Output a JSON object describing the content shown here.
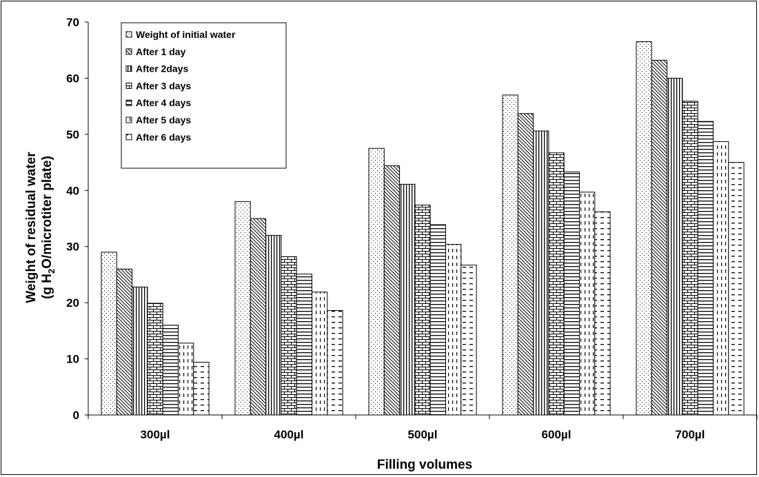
{
  "chart_data": {
    "type": "bar",
    "title": "",
    "xlabel": "Filling volumes",
    "ylabel_line1": "Weight of residual water",
    "ylabel_line2_prefix": "(g H",
    "ylabel_line2_sub": "2",
    "ylabel_line2_suffix": "O/microtiter plate)",
    "ylim": [
      0,
      70
    ],
    "yticks": [
      0,
      10,
      20,
      30,
      40,
      50,
      60,
      70
    ],
    "grid": false,
    "legend_position": "top-left",
    "categories": [
      "300µl",
      "400µl",
      "500µl",
      "600µl",
      "700µl"
    ],
    "series": [
      {
        "name": "Weight of initial water",
        "pattern": "dots",
        "values": [
          29.0,
          38.0,
          47.5,
          57.0,
          66.5
        ]
      },
      {
        "name": "After 1 day",
        "pattern": "diagonal",
        "values": [
          26.0,
          35.0,
          44.4,
          53.7,
          63.2
        ]
      },
      {
        "name": "After 2days",
        "pattern": "vertical",
        "values": [
          22.8,
          32.0,
          41.1,
          50.6,
          60.0
        ]
      },
      {
        "name": "After 3 days",
        "pattern": "brick",
        "values": [
          19.9,
          28.2,
          37.4,
          46.7,
          55.9
        ]
      },
      {
        "name": "After  4 days",
        "pattern": "horizontal",
        "values": [
          16.0,
          25.1,
          33.9,
          43.3,
          52.3
        ]
      },
      {
        "name": "After 5 days",
        "pattern": "vdash",
        "values": [
          12.8,
          21.9,
          30.4,
          39.7,
          48.7
        ]
      },
      {
        "name": "After 6 days",
        "pattern": "hdash",
        "values": [
          9.4,
          18.6,
          26.7,
          36.2,
          45.0
        ]
      }
    ]
  }
}
